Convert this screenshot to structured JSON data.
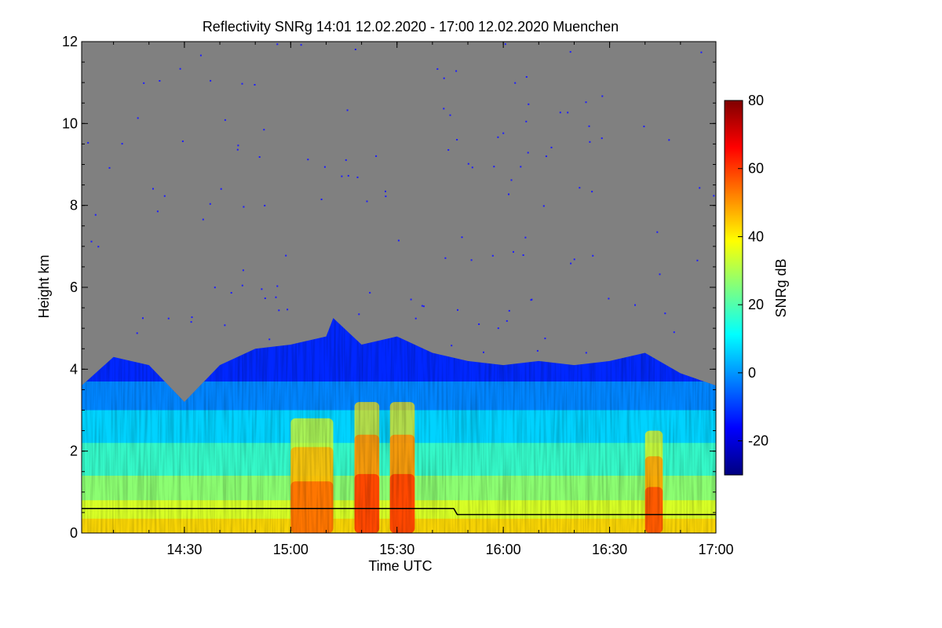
{
  "chart_data": {
    "type": "heatmap",
    "title": "Reflectivity SNRg   14:01 12.02.2020 - 17:00 12.02.2020 Muenchen",
    "xlabel": "Time UTC",
    "ylabel": "Height km",
    "colorbar_label": "SNRg dB",
    "xlim": [
      "14:01",
      "17:00"
    ],
    "ylim": [
      0,
      12
    ],
    "x_ticks": [
      "14:30",
      "15:00",
      "15:30",
      "16:00",
      "16:30",
      "17:00"
    ],
    "y_ticks": [
      "0",
      "2",
      "4",
      "6",
      "8",
      "10",
      "12"
    ],
    "colorbar_range": [
      -30,
      80
    ],
    "colorbar_ticks": [
      "-20",
      "0",
      "20",
      "40",
      "60",
      "80"
    ],
    "colormap": [
      "#00007f",
      "#0000ff",
      "#007fff",
      "#00ffff",
      "#7fff7f",
      "#ffff00",
      "#ff7f00",
      "#ff0000",
      "#7f0000"
    ],
    "background_color": "#808080",
    "echo_top_km": [
      {
        "time": "14:01",
        "height": 3.6
      },
      {
        "time": "14:10",
        "height": 4.3
      },
      {
        "time": "14:20",
        "height": 4.1
      },
      {
        "time": "14:30",
        "height": 3.2
      },
      {
        "time": "14:40",
        "height": 4.1
      },
      {
        "time": "14:50",
        "height": 4.5
      },
      {
        "time": "15:00",
        "height": 4.6
      },
      {
        "time": "15:10",
        "height": 4.8
      },
      {
        "time": "15:12",
        "height": 5.25
      },
      {
        "time": "15:20",
        "height": 4.6
      },
      {
        "time": "15:30",
        "height": 4.8
      },
      {
        "time": "15:40",
        "height": 4.4
      },
      {
        "time": "15:50",
        "height": 4.2
      },
      {
        "time": "16:00",
        "height": 4.1
      },
      {
        "time": "16:10",
        "height": 4.2
      },
      {
        "time": "16:20",
        "height": 4.1
      },
      {
        "time": "16:30",
        "height": 4.2
      },
      {
        "time": "16:40",
        "height": 4.4
      },
      {
        "time": "16:50",
        "height": 3.9
      },
      {
        "time": "17:00",
        "height": 3.6
      }
    ],
    "intense_cores": [
      {
        "time_start": "15:00",
        "time_end": "15:12",
        "top_km": 2.8,
        "peak_db": 55
      },
      {
        "time_start": "15:18",
        "time_end": "15:25",
        "top_km": 3.2,
        "peak_db": 60
      },
      {
        "time_start": "15:28",
        "time_end": "15:35",
        "top_km": 3.2,
        "peak_db": 60
      },
      {
        "time_start": "16:40",
        "time_end": "16:45",
        "top_km": 2.5,
        "peak_db": 58
      }
    ],
    "reference_line_km": [
      {
        "time": "14:01",
        "height": 0.6
      },
      {
        "time": "15:46",
        "height": 0.6
      },
      {
        "time": "15:47",
        "height": 0.45
      },
      {
        "time": "17:00",
        "height": 0.45
      }
    ]
  }
}
